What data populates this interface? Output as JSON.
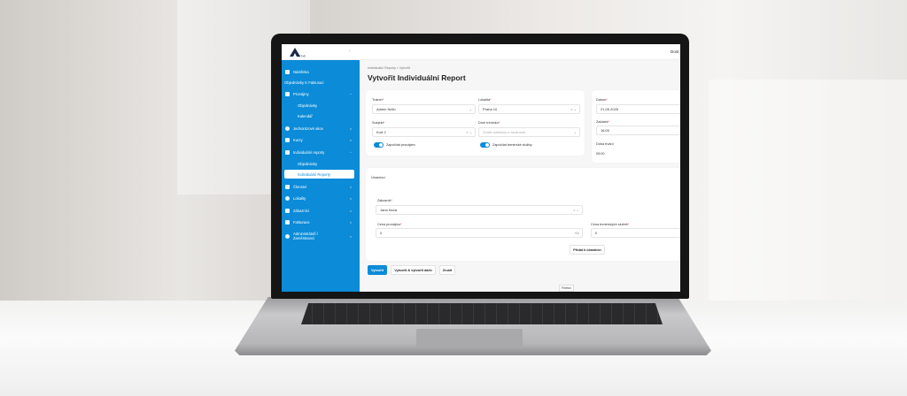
{
  "topbar": {
    "user": "Dost"
  },
  "sidebar": {
    "logo_text": "ACTIVE",
    "items": [
      {
        "label": "Nástěnka"
      },
      {
        "label": "Objednávky K Fakturaci"
      },
      {
        "label": "Pronájmy"
      },
      {
        "label": "Objednávky"
      },
      {
        "label": "Kalendář"
      },
      {
        "label": "Jednorázové akce"
      },
      {
        "label": "Kurzy"
      },
      {
        "label": "Individuální reporty"
      },
      {
        "label": "Objednávky"
      },
      {
        "label": "Individuální Reporty"
      },
      {
        "label": "Členství"
      },
      {
        "label": "Lokality"
      },
      {
        "label": "Zákazníci"
      },
      {
        "label": "Fakturace"
      },
      {
        "label": "Administrátoři / Zaměstnanci"
      }
    ]
  },
  "breadcrumb": {
    "parent": "Individuální Reporty",
    "sep": ">",
    "current": "Vytvořit"
  },
  "page_title": "Vytvořit Individuální Report",
  "form": {
    "trainer": {
      "label": "Trainer",
      "value": "Admin Nelio"
    },
    "lokalita": {
      "label": "Lokalita",
      "value": "Praha 10"
    },
    "subjekt": {
      "label": "Subjekt",
      "value": "Kurt 2"
    },
    "druh": {
      "label": "Druh tréninku",
      "placeholder": "Zvolte některou z možností"
    },
    "toggle_pronajem": {
      "label": "Započítat pronájem",
      "on": true
    },
    "toggle_sluzby": {
      "label": "Započítat trenérské služby",
      "on": true
    },
    "datum": {
      "label": "Datum",
      "value": "21.05.2025"
    },
    "zacatek": {
      "label": "Začátek",
      "value": "16:00"
    },
    "doba": {
      "label": "Doba trvání",
      "value": "05:00"
    }
  },
  "ucastnici": {
    "title": "Účastníci",
    "zakaznik": {
      "label": "Zákazník",
      "value": "Jana Nová"
    },
    "cena_pronajmu": {
      "label": "Cena pronájmu",
      "value": "0",
      "suffix": "Kč"
    },
    "cena_sluzeb": {
      "label": "Cena trenérských služeb",
      "value": "0"
    },
    "add_button": "Přidat k účastníci"
  },
  "actions": {
    "create": "Vytvořit",
    "create_another": "Vytvořit & vytvořit další",
    "cancel": "Zrušit"
  },
  "tooltip": "Firefox",
  "colors": {
    "primary": "#0b8bd8"
  }
}
